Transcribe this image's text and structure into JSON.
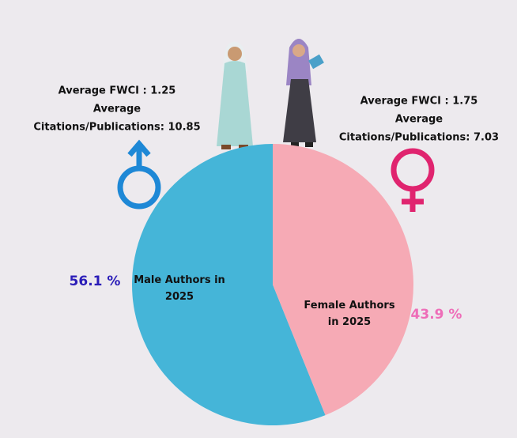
{
  "chart_data": {
    "type": "pie",
    "categories": [
      "Male Authors in 2025",
      "Female Authors in 2025"
    ],
    "values": [
      56.1,
      43.9
    ],
    "value_labels": [
      "56.1 %",
      "43.9 %"
    ],
    "colors": [
      "#45b5d8",
      "#f6aab5"
    ],
    "label_colors": [
      "#2b1db8",
      "#ee6db8"
    ],
    "annotations": [
      [
        "Average FWCI : 1.25",
        "Average",
        "Citations/Publications: 10.85"
      ],
      [
        "Average FWCI : 1.75",
        "Average",
        "Citations/Publications: 7.03"
      ]
    ]
  }
}
